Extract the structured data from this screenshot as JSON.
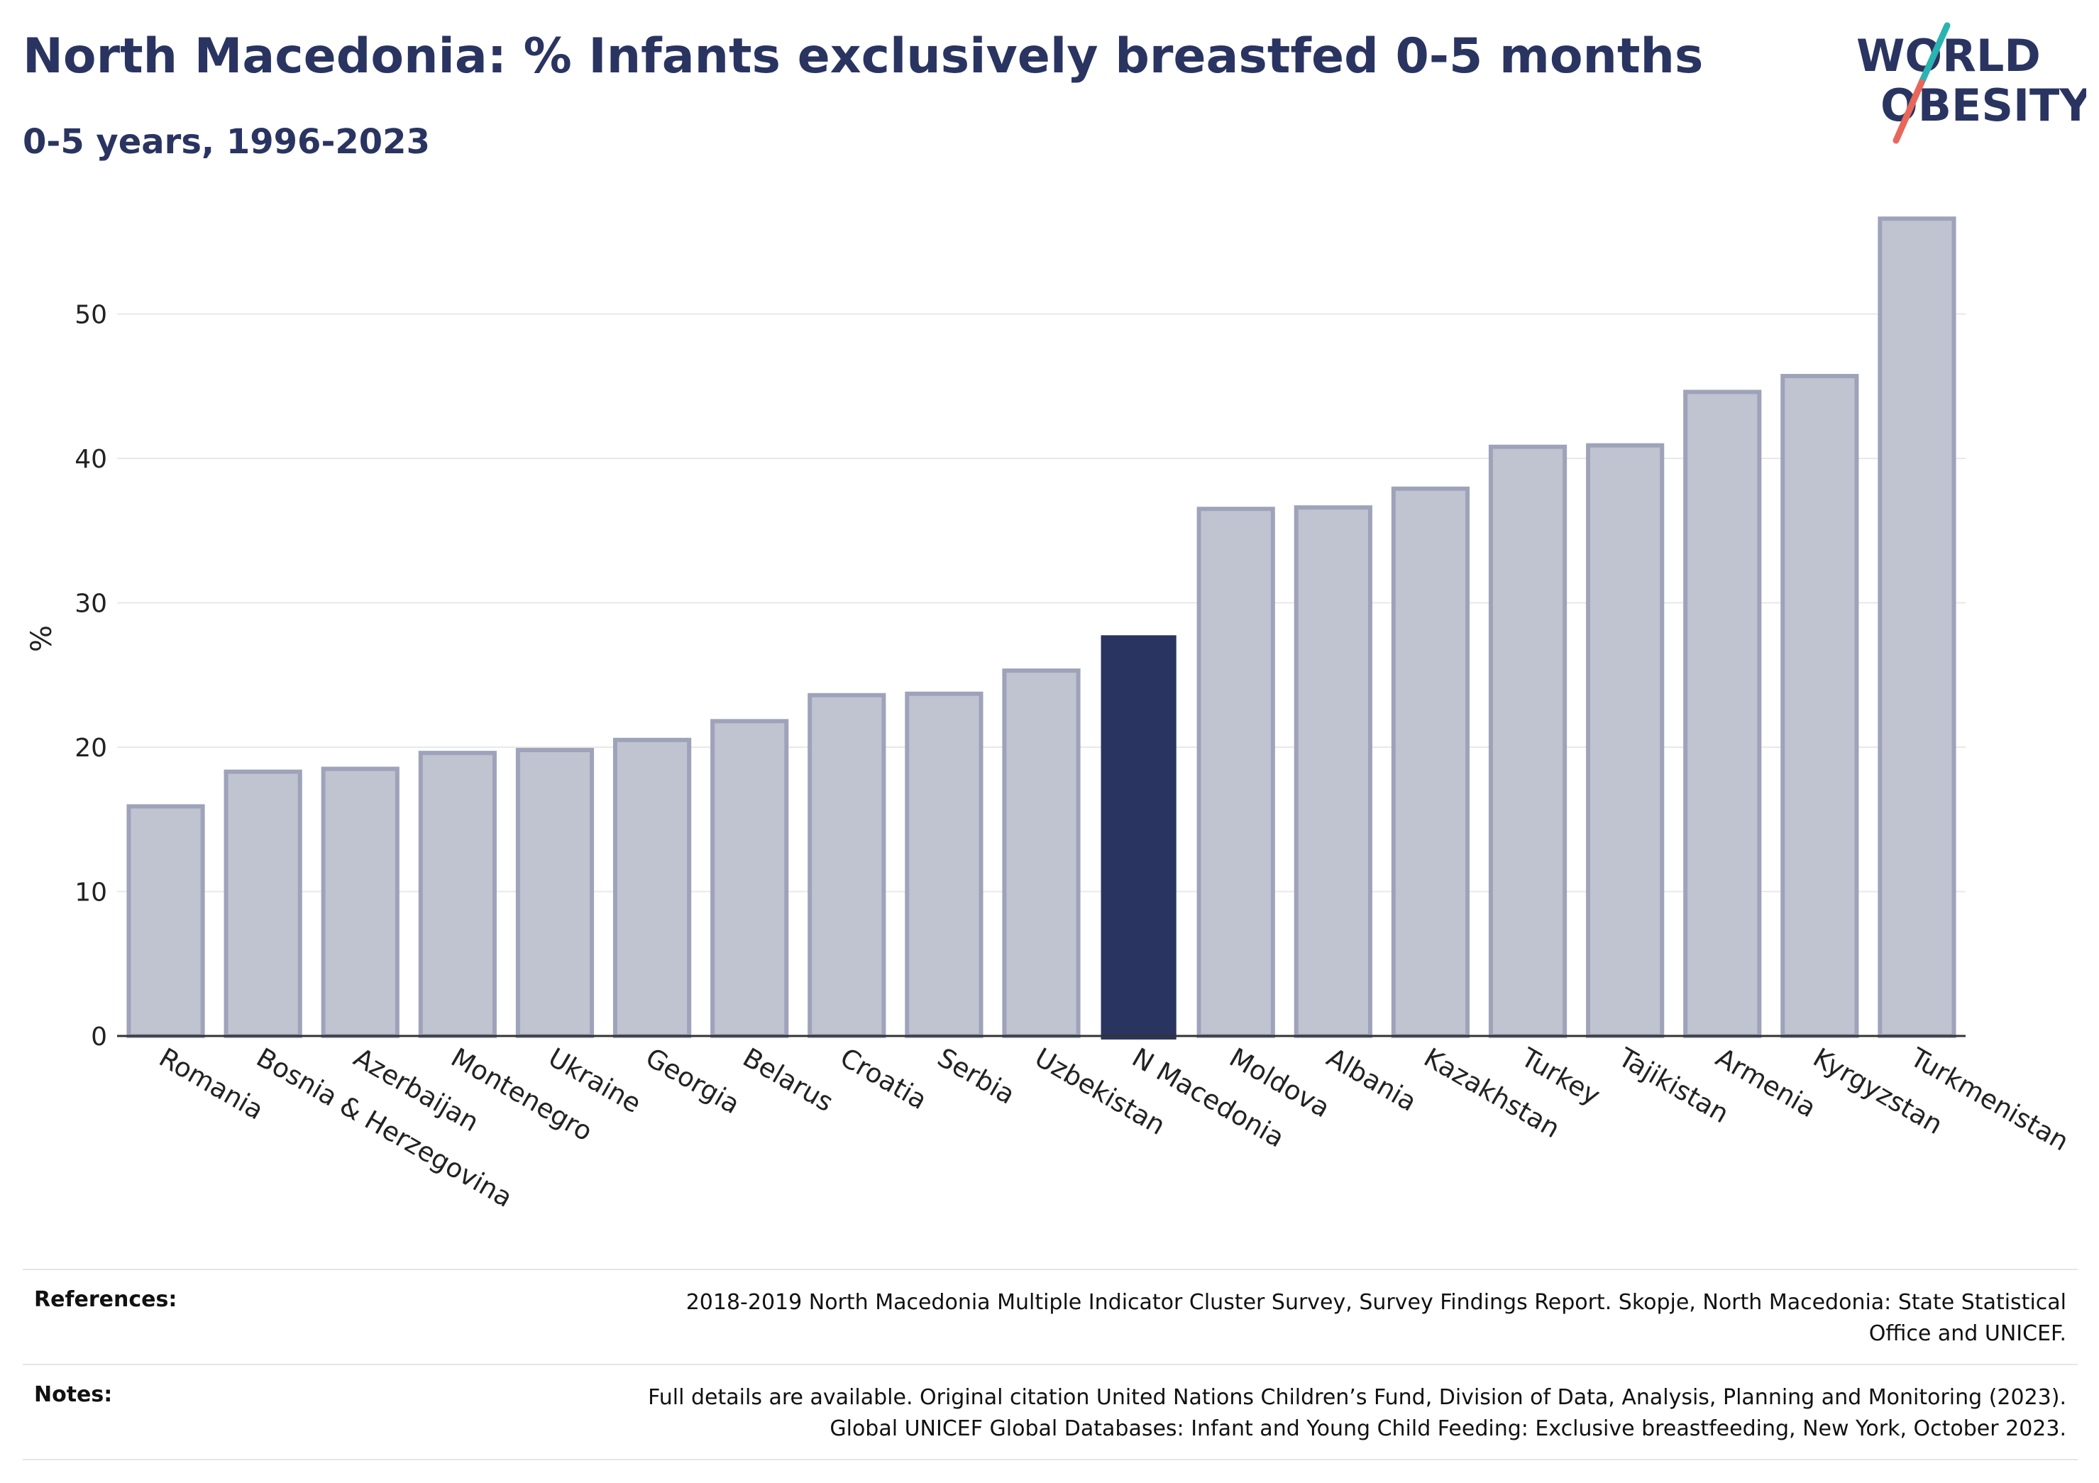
{
  "header": {
    "title": "North Macedonia: % Infants exclusively breastfed 0-5 months",
    "subtitle": "0-5 years, 1996-2023"
  },
  "logo": {
    "line1": "WORLD",
    "line2": "OBESITY",
    "colors": {
      "text": "#2a3461",
      "slash_top": "#2bb3b1",
      "slash_bottom": "#e8675a"
    }
  },
  "chart_data": {
    "type": "bar",
    "title": "North Macedonia: % Infants exclusively breastfed 0-5 months",
    "subtitle": "0-5 years, 1996-2023",
    "ylabel": "%",
    "xlabel": "",
    "ylim": [
      0,
      57
    ],
    "yticks": [
      0,
      10,
      20,
      30,
      40,
      50
    ],
    "grid": true,
    "highlight": "N Macedonia",
    "colors": {
      "bar": "#c0c3d0",
      "bar_edge": "#9ea3ba",
      "highlight": "#2a3461"
    },
    "categories": [
      "Romania",
      "Bosnia & Herzegovina",
      "Azerbaijan",
      "Montenegro",
      "Ukraine",
      "Georgia",
      "Belarus",
      "Croatia",
      "Serbia",
      "Uzbekistan",
      "N Macedonia",
      "Moldova",
      "Albania",
      "Kazakhstan",
      "Turkey",
      "Tajikistan",
      "Armenia",
      "Kyrgyzstan",
      "Turkmenistan"
    ],
    "values": [
      15.9,
      18.3,
      18.5,
      19.6,
      19.8,
      20.5,
      21.8,
      23.6,
      23.7,
      25.3,
      27.7,
      36.5,
      36.6,
      37.9,
      40.8,
      40.9,
      44.6,
      45.7,
      56.6
    ]
  },
  "references": {
    "label": "References:",
    "lines": [
      "2018-2019 North Macedonia Multiple Indicator Cluster Survey, Survey Findings Report. Skopje, North Macedonia: State Statistical",
      "Office and UNICEF."
    ]
  },
  "notes": {
    "label": "Notes:",
    "lines": [
      "Full details are available. Original citation United Nations Children’s Fund, Division of Data, Analysis, Planning and Monitoring (2023).",
      "Global UNICEF Global Databases: Infant and Young Child Feeding: Exclusive breastfeeding, New York, October 2023."
    ]
  }
}
